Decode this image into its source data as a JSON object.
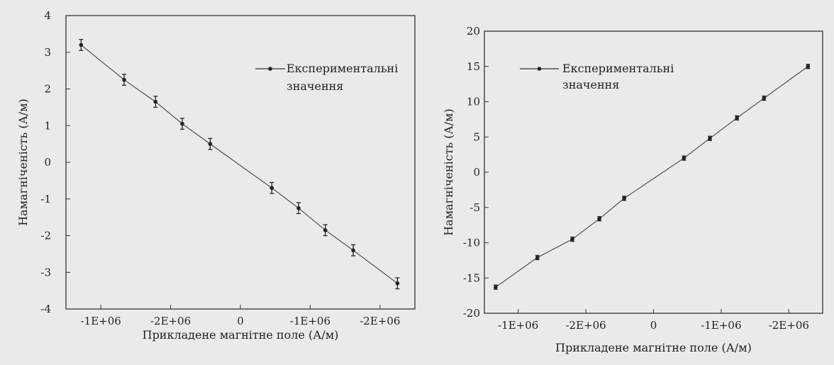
{
  "colors": {
    "background": "#e9ebe9",
    "line": "#444444",
    "marker": "#222222",
    "text": "#222222"
  },
  "chart_data": [
    {
      "type": "line",
      "xlabel": "Прикладене магнітне поле (А/м)",
      "ylabel": "Намагніченість (А/м)",
      "ylim": [
        -4,
        4
      ],
      "yticks": [
        4,
        3,
        2,
        1,
        0,
        -1,
        -2,
        -3,
        -4
      ],
      "xtick_labels": [
        "-1E+06",
        "-2E+06",
        "0",
        "-1E+06",
        "-2E+06"
      ],
      "xtick_positions": [
        -1.2,
        -0.6,
        0,
        0.6,
        1.2
      ],
      "xlim": [
        -1.5,
        1.5
      ],
      "legend": {
        "label_line1": "Експериментальні",
        "label_line2": "значення",
        "position": "top-right"
      },
      "series": [
        {
          "x": [
            -1.37,
            -1.0,
            -0.73,
            -0.5,
            -0.26,
            0.27,
            0.5,
            0.73,
            0.97,
            1.35
          ],
          "y": [
            3.2,
            2.25,
            1.65,
            1.05,
            0.5,
            -0.7,
            -1.25,
            -1.85,
            -2.4,
            -3.3
          ],
          "error": 0.15
        }
      ]
    },
    {
      "type": "line",
      "xlabel": "Прикладене магнітне поле (А/м)",
      "ylabel": "Намагніченість (А/м)",
      "ylim": [
        -20,
        20
      ],
      "yticks": [
        20,
        15,
        10,
        5,
        0,
        -5,
        -10,
        -15,
        -20
      ],
      "xtick_labels": [
        "-1E+06",
        "-2E+06",
        "0",
        "-1E+06",
        "-2E+06"
      ],
      "xtick_positions": [
        -1.2,
        -0.6,
        0,
        0.6,
        1.2
      ],
      "xlim": [
        -1.5,
        1.5
      ],
      "legend": {
        "label_line1": "Експериментальні",
        "label_line2": "значення",
        "position": "top-left"
      },
      "series": [
        {
          "x": [
            -1.4,
            -1.03,
            -0.72,
            -0.48,
            -0.26,
            0.27,
            0.5,
            0.74,
            0.98,
            1.37
          ],
          "y": [
            -16.3,
            -12.1,
            -9.5,
            -6.6,
            -3.7,
            2.0,
            4.8,
            7.7,
            10.5,
            15.0
          ],
          "error": 0.3
        }
      ]
    }
  ]
}
